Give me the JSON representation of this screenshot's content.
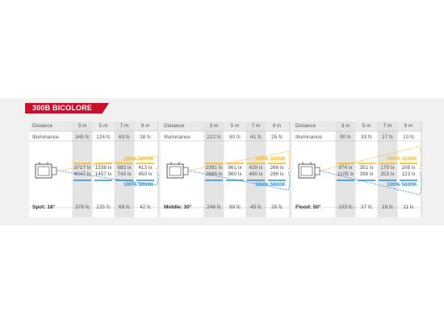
{
  "product_title": "300B BICOLORE",
  "labels": {
    "distance": "Distance",
    "illuminance": "Illuminance"
  },
  "colors": {
    "warm": "#f3b81b",
    "cool": "#2e8fd3",
    "accent": "#c8102e",
    "shade": "#e4e4e4",
    "line": "#bbbbbb"
  },
  "chart_data": [
    {
      "type": "table",
      "beam": "Spot: 18°",
      "distances": [
        "3 m",
        "5 m",
        "7 m",
        "9 m"
      ],
      "illuminance_fc": [
        "345 fc",
        "124 fc",
        "63 fc",
        "38 fc"
      ],
      "lux_3200k": [
        "3717 lx",
        "1338 lx",
        "683 lx",
        "413 lx"
      ],
      "lux_5600k": [
        "4047 lx",
        "1457 lx",
        "743 lx",
        "450 lx"
      ],
      "bottom_fc": [
        "376 fc",
        "135 fc",
        "69 fc",
        "42 fc"
      ],
      "tag_3200k": "100% 3200K",
      "tag_5600k": "100% 5600K"
    },
    {
      "type": "table",
      "beam": "Middle: 30°",
      "distances": [
        "3 m",
        "5 m",
        "7 m",
        "9 m"
      ],
      "illuminance_fc": [
        "222 fc",
        "80 fc",
        "41 fc",
        "25 fc"
      ],
      "lux_3200k": [
        "2391 lx",
        "861 lx",
        "439 lx",
        "266 lx"
      ],
      "lux_5600k": [
        "2666 lx",
        "960 lx",
        "490 lx",
        "296 lx"
      ],
      "bottom_fc": [
        "248 fc",
        "89 fc",
        "45 fc",
        "28 fc"
      ],
      "tag_3200k": "100% 3200K",
      "tag_5600k": "100% 5600K"
    },
    {
      "type": "table",
      "beam": "Flood: 50°",
      "distances": [
        "3 m",
        "5 m",
        "7 m",
        "9 m"
      ],
      "illuminance_fc": [
        "90 fc",
        "33 fc",
        "17 fc",
        "10 fc"
      ],
      "lux_3200k": [
        "974 lx",
        "351 lx",
        "179 lx",
        "108 lx"
      ],
      "lux_5600k": [
        "1105 lx",
        "398 lx",
        "203 lx",
        "123 lx"
      ],
      "bottom_fc": [
        "103 fc",
        "37 fc",
        "19 fc",
        "11 fc"
      ],
      "tag_3200k": "100% 3200K",
      "tag_5600k": "100% 5600K"
    }
  ]
}
